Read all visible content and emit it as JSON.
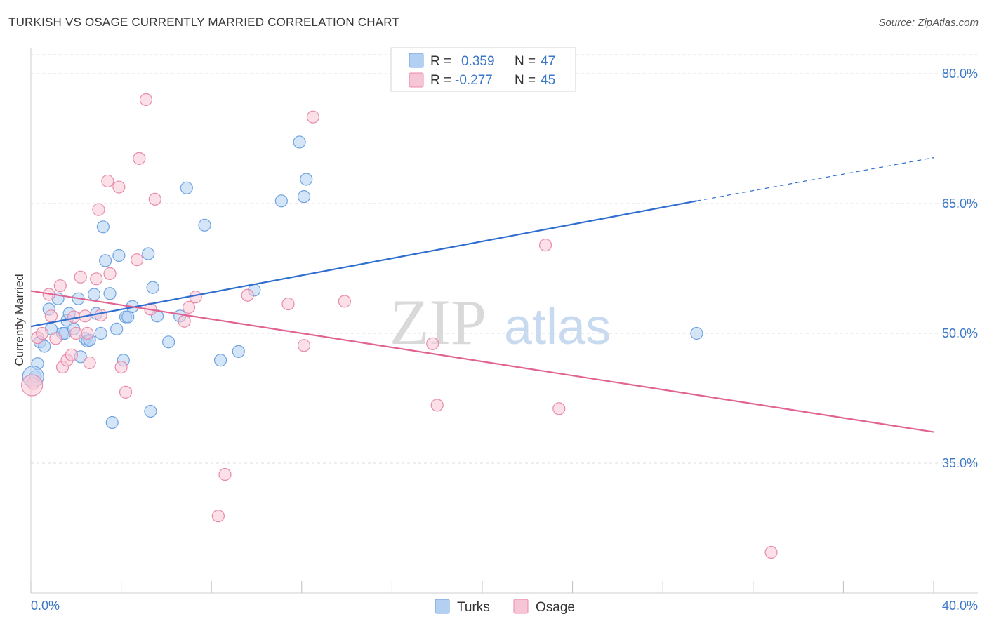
{
  "title": "TURKISH VS OSAGE CURRENTLY MARRIED CORRELATION CHART",
  "source": "Source: ZipAtlas.com",
  "watermark": {
    "zip": "ZIP",
    "atlas": "atlas"
  },
  "chart_data": {
    "type": "scatter",
    "ylabel": "Currently Married",
    "xlim": [
      0,
      40
    ],
    "ylim": [
      20,
      83
    ],
    "x_tick_labels": [
      "0.0%",
      "40.0%"
    ],
    "y_ticks": [
      35,
      50,
      65,
      80
    ],
    "y_tick_labels": [
      "35.0%",
      "50.0%",
      "65.0%",
      "80.0%"
    ],
    "grid": "horizontal dashed",
    "legend": [
      {
        "r_label": "R =",
        "r_value": "0.359",
        "n_label": "N =",
        "n_value": "47"
      },
      {
        "r_label": "R =",
        "r_value": "-0.277",
        "n_label": "N =",
        "n_value": "45"
      }
    ],
    "series": [
      {
        "name": "Turks",
        "color": "#6fa3e0",
        "fill": "#b3cff2",
        "trend": {
          "x0": 0,
          "y0": 50.8,
          "x1": 29.5,
          "y1": 65.3,
          "dash_to_x": 40,
          "dash_to_y": 70.3,
          "color": "#2f6ecf"
        },
        "points": [
          [
            0.2,
            45.0
          ],
          [
            0.3,
            46.5
          ],
          [
            0.4,
            49.0
          ],
          [
            0.6,
            48.5
          ],
          [
            0.8,
            52.8
          ],
          [
            0.9,
            50.5
          ],
          [
            1.2,
            54.0
          ],
          [
            1.4,
            50.0
          ],
          [
            1.5,
            50.0
          ],
          [
            1.6,
            51.5
          ],
          [
            1.7,
            52.3
          ],
          [
            1.9,
            50.5
          ],
          [
            2.1,
            54.0
          ],
          [
            2.2,
            47.3
          ],
          [
            2.4,
            49.4
          ],
          [
            2.5,
            49.1
          ],
          [
            2.6,
            49.2
          ],
          [
            2.8,
            54.5
          ],
          [
            2.9,
            52.3
          ],
          [
            3.1,
            50.0
          ],
          [
            3.2,
            62.3
          ],
          [
            3.3,
            58.4
          ],
          [
            3.5,
            54.6
          ],
          [
            3.6,
            39.7
          ],
          [
            3.8,
            50.5
          ],
          [
            3.9,
            59.0
          ],
          [
            4.1,
            46.9
          ],
          [
            4.2,
            51.9
          ],
          [
            4.3,
            51.9
          ],
          [
            4.5,
            53.1
          ],
          [
            5.2,
            59.2
          ],
          [
            5.3,
            41.0
          ],
          [
            5.4,
            55.3
          ],
          [
            5.6,
            52.0
          ],
          [
            6.1,
            49.0
          ],
          [
            6.6,
            52.0
          ],
          [
            6.9,
            66.8
          ],
          [
            7.7,
            62.5
          ],
          [
            8.4,
            46.9
          ],
          [
            9.2,
            47.9
          ],
          [
            9.9,
            55.0
          ],
          [
            11.1,
            65.3
          ],
          [
            11.9,
            72.1
          ],
          [
            12.1,
            65.8
          ],
          [
            12.2,
            67.8
          ],
          [
            29.5,
            50.0
          ],
          [
            0.1,
            45.0
          ]
        ]
      },
      {
        "name": "Osage",
        "color": "#e88aaa",
        "fill": "#f7c6d6",
        "trend": {
          "x0": 0,
          "y0": 54.9,
          "x1": 40,
          "y1": 38.6,
          "color": "#e06392"
        },
        "points": [
          [
            0.1,
            44.2
          ],
          [
            0.3,
            49.5
          ],
          [
            0.5,
            50.0
          ],
          [
            0.8,
            54.5
          ],
          [
            0.9,
            52.0
          ],
          [
            1.1,
            49.4
          ],
          [
            1.3,
            55.5
          ],
          [
            1.4,
            46.1
          ],
          [
            1.6,
            46.9
          ],
          [
            1.8,
            47.5
          ],
          [
            1.9,
            51.9
          ],
          [
            2.0,
            50.0
          ],
          [
            2.2,
            56.5
          ],
          [
            2.4,
            52.0
          ],
          [
            2.5,
            50.0
          ],
          [
            2.6,
            46.6
          ],
          [
            2.9,
            56.3
          ],
          [
            3.0,
            64.3
          ],
          [
            3.1,
            52.1
          ],
          [
            3.4,
            67.6
          ],
          [
            3.5,
            56.9
          ],
          [
            3.9,
            66.9
          ],
          [
            4.0,
            46.1
          ],
          [
            4.2,
            43.2
          ],
          [
            4.7,
            58.5
          ],
          [
            4.8,
            70.2
          ],
          [
            5.1,
            77.0
          ],
          [
            5.3,
            52.8
          ],
          [
            5.5,
            65.5
          ],
          [
            6.8,
            51.4
          ],
          [
            7.0,
            53.0
          ],
          [
            7.3,
            54.2
          ],
          [
            8.3,
            28.9
          ],
          [
            8.6,
            33.7
          ],
          [
            9.6,
            54.4
          ],
          [
            11.4,
            53.4
          ],
          [
            12.1,
            48.6
          ],
          [
            12.5,
            75.0
          ],
          [
            13.9,
            53.7
          ],
          [
            17.8,
            48.8
          ],
          [
            18.0,
            41.7
          ],
          [
            22.8,
            60.2
          ],
          [
            23.4,
            41.3
          ],
          [
            32.8,
            24.7
          ],
          [
            0.05,
            44.0
          ]
        ]
      }
    ]
  }
}
